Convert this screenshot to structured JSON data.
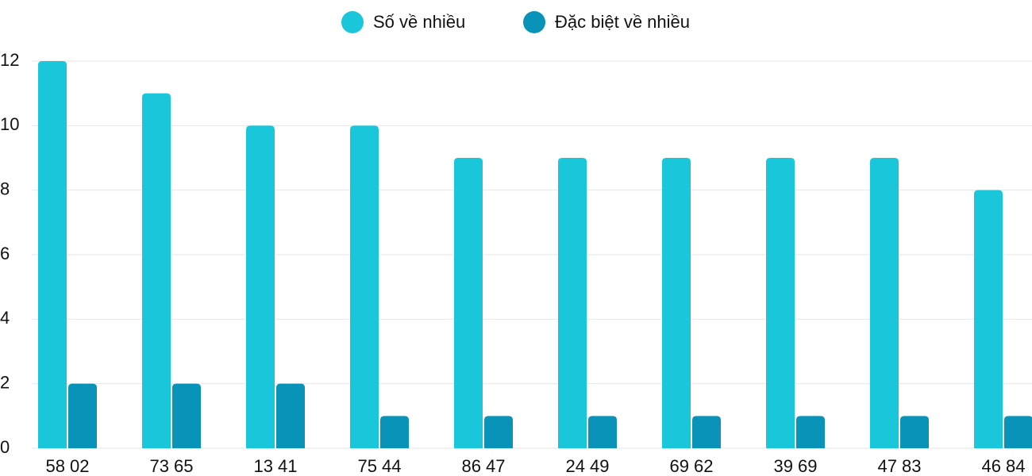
{
  "chart_data": {
    "type": "bar",
    "categories": [
      "58 02",
      "73 65",
      "13 41",
      "75 44",
      "86 47",
      "24 49",
      "69 62",
      "39 69",
      "47 83",
      "46 84"
    ],
    "series": [
      {
        "name": "Số về nhiều",
        "color": "#1ac7da",
        "values": [
          12,
          11,
          10,
          10,
          9,
          9,
          9,
          9,
          9,
          8
        ]
      },
      {
        "name": "Đặc biệt về nhiều",
        "color": "#0993b8",
        "values": [
          2,
          2,
          2,
          1,
          1,
          1,
          1,
          1,
          1,
          1
        ]
      }
    ],
    "ylim": [
      0,
      12
    ],
    "yticks": [
      0,
      2,
      4,
      6,
      8,
      10,
      12
    ],
    "grid": true
  }
}
